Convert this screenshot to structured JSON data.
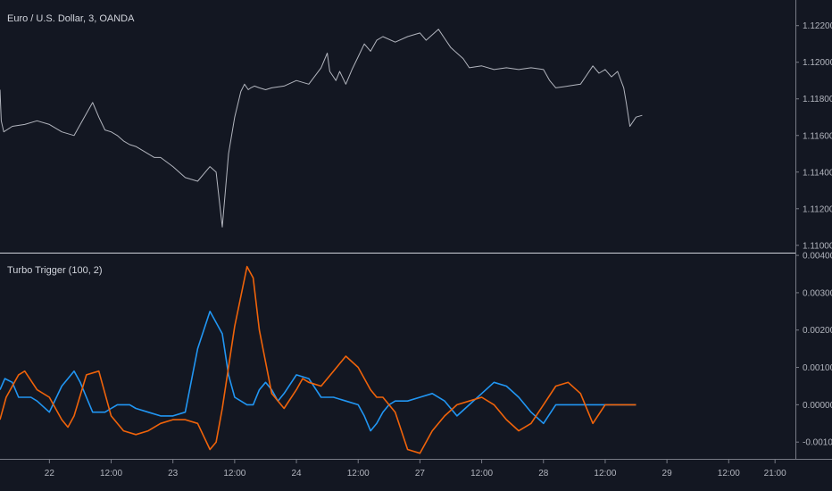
{
  "chart_data": [
    {
      "type": "line",
      "title": "Euro / U.S. Dollar, 3, OANDA",
      "y_ticks": [
        "1.12200",
        "1.12000",
        "1.11800",
        "1.11600",
        "1.11400",
        "1.11200",
        "1.11000"
      ],
      "y_tick_values": [
        1.122,
        1.12,
        1.118,
        1.116,
        1.114,
        1.112,
        1.11
      ],
      "ylim": [
        1.1096,
        1.1234
      ],
      "x_ticks": [
        "22",
        "12:00",
        "23",
        "12:00",
        "24",
        "12:00",
        "27",
        "12:00",
        "28",
        "12:00",
        "29",
        "12:00",
        "21:00"
      ],
      "x_tick_values": [
        0.5,
        1.0,
        1.5,
        2.0,
        2.5,
        3.0,
        3.5,
        4.0,
        4.5,
        5.0,
        5.5,
        6.0,
        6.375
      ],
      "xlim": [
        0.1,
        6.54
      ],
      "grid": false,
      "series": [
        {
          "color": "#b2b5be",
          "x": [
            0.1,
            0.11,
            0.13,
            0.2,
            0.3,
            0.4,
            0.5,
            0.6,
            0.7,
            0.8,
            0.85,
            0.9,
            0.95,
            1.0,
            1.05,
            1.1,
            1.15,
            1.2,
            1.25,
            1.3,
            1.35,
            1.4,
            1.5,
            1.6,
            1.7,
            1.8,
            1.85,
            1.9,
            1.95,
            2.0,
            2.05,
            2.08,
            2.11,
            2.13,
            2.16,
            2.2,
            2.25,
            2.3,
            2.4,
            2.5,
            2.6,
            2.7,
            2.75,
            2.77,
            2.79,
            2.82,
            2.85,
            2.9,
            2.95,
            3.0,
            3.05,
            3.1,
            3.15,
            3.2,
            3.3,
            3.4,
            3.5,
            3.55,
            3.6,
            3.65,
            3.7,
            3.75,
            3.8,
            3.85,
            3.9,
            4.0,
            4.1,
            4.2,
            4.3,
            4.4,
            4.5,
            4.55,
            4.6,
            4.7,
            4.8,
            4.85,
            4.9,
            4.95,
            5.0,
            5.05,
            5.1,
            5.15,
            5.17,
            5.2,
            5.25,
            5.3
          ],
          "values": [
            1.1185,
            1.1168,
            1.1162,
            1.1165,
            1.1166,
            1.1168,
            1.1166,
            1.1162,
            1.116,
            1.1172,
            1.1178,
            1.117,
            1.1163,
            1.1162,
            1.116,
            1.1157,
            1.1155,
            1.1154,
            1.1152,
            1.115,
            1.1148,
            1.1148,
            1.1143,
            1.1137,
            1.1135,
            1.1143,
            1.114,
            1.111,
            1.115,
            1.117,
            1.1184,
            1.1188,
            1.1185,
            1.1186,
            1.1187,
            1.1186,
            1.1185,
            1.1186,
            1.1187,
            1.119,
            1.1188,
            1.1197,
            1.1205,
            1.1195,
            1.1193,
            1.119,
            1.1195,
            1.1188,
            1.1196,
            1.1203,
            1.121,
            1.1206,
            1.1212,
            1.1214,
            1.1211,
            1.1214,
            1.1216,
            1.1212,
            1.1215,
            1.1218,
            1.1213,
            1.1208,
            1.1205,
            1.1202,
            1.1197,
            1.1198,
            1.1196,
            1.1197,
            1.1196,
            1.1197,
            1.1196,
            1.119,
            1.1186,
            1.1187,
            1.1188,
            1.1193,
            1.1198,
            1.1194,
            1.1196,
            1.1192,
            1.1195,
            1.1186,
            1.1178,
            1.1165,
            1.117,
            1.1171
          ]
        }
      ]
    },
    {
      "type": "line",
      "title": "Turbo Trigger (100, 2)",
      "y_ticks": [
        "0.00400",
        "0.00300",
        "0.00200",
        "0.00100",
        "0.00000",
        "-0.00100"
      ],
      "y_tick_values": [
        0.004,
        0.003,
        0.002,
        0.001,
        0.0,
        -0.001
      ],
      "ylim": [
        -0.00145,
        0.00405
      ],
      "x_ticks": [
        "22",
        "12:00",
        "23",
        "12:00",
        "24",
        "12:00",
        "27",
        "12:00",
        "28",
        "12:00",
        "29",
        "12:00",
        "21:00"
      ],
      "x_tick_values": [
        0.5,
        1.0,
        1.5,
        2.0,
        2.5,
        3.0,
        3.5,
        4.0,
        4.5,
        5.0,
        5.5,
        6.0,
        6.375
      ],
      "xlim": [
        0.1,
        6.54
      ],
      "grid": false,
      "series": [
        {
          "color": "#2196f3",
          "x": [
            0.1,
            0.14,
            0.2,
            0.25,
            0.3,
            0.35,
            0.4,
            0.5,
            0.6,
            0.7,
            0.75,
            0.8,
            0.85,
            0.95,
            1.0,
            1.05,
            1.1,
            1.15,
            1.2,
            1.3,
            1.4,
            1.5,
            1.6,
            1.7,
            1.8,
            1.9,
            1.95,
            2.0,
            2.05,
            2.1,
            2.15,
            2.2,
            2.25,
            2.3,
            2.35,
            2.4,
            2.5,
            2.6,
            2.7,
            2.8,
            2.9,
            3.0,
            3.05,
            3.1,
            3.15,
            3.2,
            3.25,
            3.3,
            3.35,
            3.4,
            3.5,
            3.6,
            3.7,
            3.8,
            3.9,
            4.0,
            4.1,
            4.2,
            4.3,
            4.4,
            4.5,
            4.6,
            4.7,
            4.75,
            4.8,
            4.85,
            4.9,
            5.0,
            5.1,
            5.15,
            5.2,
            5.25
          ],
          "values": [
            0.0004,
            0.0007,
            0.0006,
            0.0002,
            0.0002,
            0.0002,
            0.0001,
            -0.0002,
            0.0005,
            0.0009,
            0.0006,
            0.0002,
            -0.0002,
            -0.0002,
            -0.0001,
            0.0,
            0.0,
            0.0,
            -0.0001,
            -0.0002,
            -0.0003,
            -0.0003,
            -0.0002,
            0.0015,
            0.0025,
            0.0019,
            0.0008,
            0.0002,
            0.0001,
            0.0,
            0.0,
            0.0004,
            0.0006,
            0.0004,
            0.0001,
            0.0003,
            0.0008,
            0.0007,
            0.0002,
            0.0002,
            0.0001,
            0.0,
            -0.0003,
            -0.0007,
            -0.0005,
            -0.0002,
            0.0,
            0.0001,
            0.0001,
            0.0001,
            0.0002,
            0.0003,
            0.0001,
            -0.0003,
            0.0,
            0.0003,
            0.0006,
            0.0005,
            0.0002,
            -0.0002,
            -0.0005,
            0.0,
            0.0,
            0.0,
            0.0,
            0.0,
            0.0,
            0.0,
            0.0,
            0.0,
            0.0,
            0.0
          ]
        },
        {
          "color": "#f0630a",
          "x": [
            0.1,
            0.15,
            0.25,
            0.3,
            0.4,
            0.5,
            0.6,
            0.65,
            0.7,
            0.8,
            0.9,
            1.0,
            1.1,
            1.2,
            1.3,
            1.4,
            1.5,
            1.6,
            1.7,
            1.8,
            1.85,
            1.9,
            2.0,
            2.1,
            2.15,
            2.2,
            2.3,
            2.4,
            2.5,
            2.55,
            2.6,
            2.7,
            2.8,
            2.9,
            3.0,
            3.1,
            3.15,
            3.2,
            3.3,
            3.4,
            3.5,
            3.6,
            3.7,
            3.8,
            3.9,
            4.0,
            4.1,
            4.2,
            4.3,
            4.4,
            4.5,
            4.6,
            4.7,
            4.8,
            4.9,
            5.0,
            5.1,
            5.2,
            5.25
          ],
          "values": [
            -0.0004,
            0.0002,
            0.0008,
            0.0009,
            0.0004,
            0.0002,
            -0.0004,
            -0.0006,
            -0.0003,
            0.0008,
            0.0009,
            -0.0003,
            -0.0007,
            -0.0008,
            -0.0007,
            -0.0005,
            -0.0004,
            -0.0004,
            -0.0005,
            -0.0012,
            -0.001,
            -0.0001,
            0.0021,
            0.0037,
            0.0034,
            0.002,
            0.0003,
            -0.0001,
            0.0004,
            0.0007,
            0.0006,
            0.0005,
            0.0009,
            0.0013,
            0.001,
            0.0004,
            0.0002,
            0.0002,
            -0.0002,
            -0.0012,
            -0.0013,
            -0.0007,
            -0.0003,
            0.0,
            0.0001,
            0.0002,
            0.0,
            -0.0004,
            -0.0007,
            -0.0005,
            0.0,
            0.0005,
            0.0006,
            0.0003,
            -0.0005,
            0.0,
            0.0,
            0.0,
            0.0
          ]
        }
      ]
    }
  ]
}
